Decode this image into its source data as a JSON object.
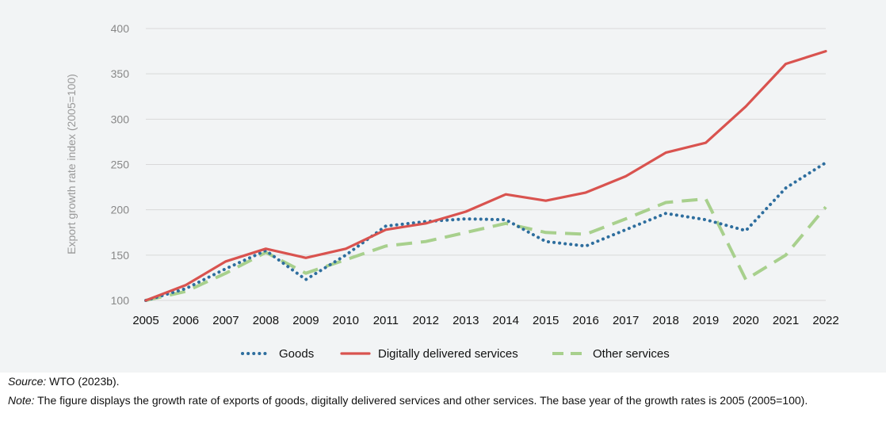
{
  "colors": {
    "goods": "#2e6e9e",
    "digital": "#d9534f",
    "other": "#a8d08d",
    "grid": "#d9d9d9",
    "panel": "#f2f4f5"
  },
  "chart_data": {
    "type": "line",
    "title": "",
    "xlabel": "",
    "ylabel": "Export growth rate index (2005=100)",
    "ylim": [
      100,
      400
    ],
    "yticks": [
      100,
      150,
      200,
      250,
      300,
      350,
      400
    ],
    "grid": true,
    "legend": "bottom",
    "x": [
      "2005",
      "2006",
      "2007",
      "2008",
      "2009",
      "2010",
      "2011",
      "2012",
      "2013",
      "2014",
      "2015",
      "2016",
      "2017",
      "2018",
      "2019",
      "2020",
      "2021",
      "2022"
    ],
    "series": [
      {
        "name": "Goods",
        "style": "dotted",
        "color_key": "goods",
        "values": [
          100,
          113,
          135,
          155,
          123,
          150,
          182,
          187,
          190,
          189,
          165,
          160,
          178,
          196,
          189,
          177,
          224,
          252
        ]
      },
      {
        "name": "Digitally delivered services",
        "style": "solid",
        "color_key": "digital",
        "values": [
          100,
          117,
          143,
          157,
          147,
          157,
          178,
          185,
          198,
          217,
          210,
          219,
          237,
          263,
          274,
          314,
          361,
          375
        ]
      },
      {
        "name": "Other services",
        "style": "dashed",
        "color_key": "other",
        "values": [
          100,
          110,
          130,
          153,
          130,
          145,
          160,
          165,
          175,
          185,
          175,
          173,
          190,
          208,
          212,
          123,
          150,
          203
        ]
      }
    ]
  },
  "notes": {
    "source_label": "Source:",
    "source_text": " WTO (2023b).",
    "note_label": "Note:",
    "note_text": " The figure displays the growth rate of exports of goods, digitally delivered services and other services. The base year of the growth rates is 2005 (2005=100)."
  }
}
